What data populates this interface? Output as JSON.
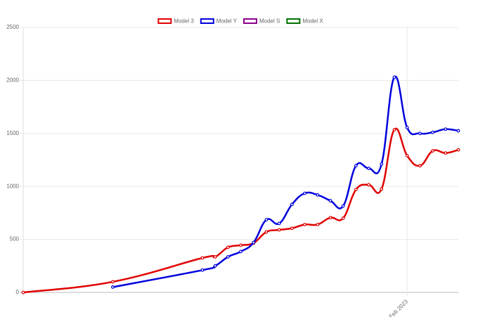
{
  "chart_data": {
    "type": "line",
    "x": [
      "2020-08",
      "2021-03",
      "2021-10",
      "2021-11",
      "2021-12",
      "2022-01",
      "2022-02",
      "2022-03",
      "2022-04",
      "2022-05",
      "2022-06",
      "2022-07",
      "2022-08",
      "2022-09",
      "2022-10",
      "2022-11",
      "2022-12",
      "2023-01",
      "2023-02",
      "2023-03",
      "2023-04",
      "2023-05",
      "2023-06"
    ],
    "series": [
      {
        "name": "Model 3",
        "color": "#e00000",
        "values": [
          0,
          100,
          325,
          335,
          425,
          445,
          465,
          570,
          590,
          605,
          640,
          640,
          705,
          700,
          970,
          1015,
          975,
          1535,
          1290,
          1195,
          1335,
          1315,
          1345
        ]
      },
      {
        "name": "Model Y",
        "color": "#0000dd",
        "values": [
          null,
          50,
          210,
          250,
          335,
          385,
          470,
          685,
          650,
          830,
          935,
          920,
          865,
          815,
          1195,
          1170,
          1210,
          2030,
          1555,
          1500,
          1510,
          1540,
          1525
        ]
      },
      {
        "name": "Model S",
        "color": "#8b008b",
        "values": [
          null,
          null,
          null,
          null,
          null,
          null,
          null,
          null,
          null,
          null,
          null,
          null,
          null,
          null,
          null,
          null,
          null,
          null,
          null,
          null,
          null,
          null,
          null
        ]
      },
      {
        "name": "Model X",
        "color": "#007000",
        "values": [
          null,
          null,
          null,
          null,
          null,
          null,
          null,
          null,
          null,
          null,
          null,
          null,
          null,
          null,
          null,
          null,
          null,
          null,
          null,
          null,
          null,
          null,
          null
        ]
      }
    ],
    "xlim": [
      "2020-08",
      "2023-06"
    ],
    "xticks": [
      {
        "value": "2023-02",
        "label": "Feb 2023"
      }
    ],
    "ylim": [
      0,
      2500
    ],
    "yticks": [
      0,
      500,
      1000,
      1500,
      2000,
      2500
    ],
    "grid": true
  }
}
